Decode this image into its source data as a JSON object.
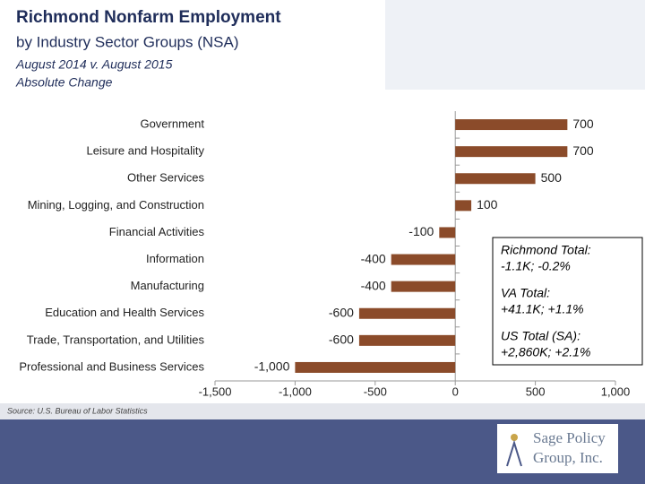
{
  "chart_data": {
    "type": "bar",
    "orientation": "horizontal",
    "title": "Richmond Nonfarm Employment",
    "subtitle": "by Industry Sector Groups (NSA)",
    "period": "August 2014 v. August 2015",
    "measure": "Absolute Change",
    "categories": [
      "Government",
      "Leisure and Hospitality",
      "Other Services",
      "Mining, Logging, and Construction",
      "Financial Activities",
      "Information",
      "Manufacturing",
      "Education and Health Services",
      "Trade, Transportation, and Utilities",
      "Professional and Business Services"
    ],
    "values": [
      700,
      700,
      500,
      100,
      -100,
      -400,
      -400,
      -600,
      -600,
      -1000
    ],
    "value_labels": [
      "700",
      "700",
      "500",
      "100",
      "-100",
      "-400",
      "-400",
      "-600",
      "-600",
      "-1,000"
    ],
    "color": "#8b4b2a",
    "xlim": [
      -1500,
      1000
    ],
    "xticks": [
      {
        "value": -1500,
        "label": "-1,500"
      },
      {
        "value": -1000,
        "label": "-1,000"
      },
      -500,
      0,
      500,
      {
        "value": 1000,
        "label": "1,000"
      }
    ],
    "annotation": [
      "Richmond Total:",
      "-1.1K; -0.2%",
      "VA Total:",
      "+41.1K; +1.1%",
      "US Total (SA):",
      "+2,860K; +2.1%"
    ],
    "source": "Source: U.S. Bureau of Labor Statistics"
  },
  "logo": {
    "lines": [
      "Sage Policy",
      "Group, Inc."
    ]
  }
}
